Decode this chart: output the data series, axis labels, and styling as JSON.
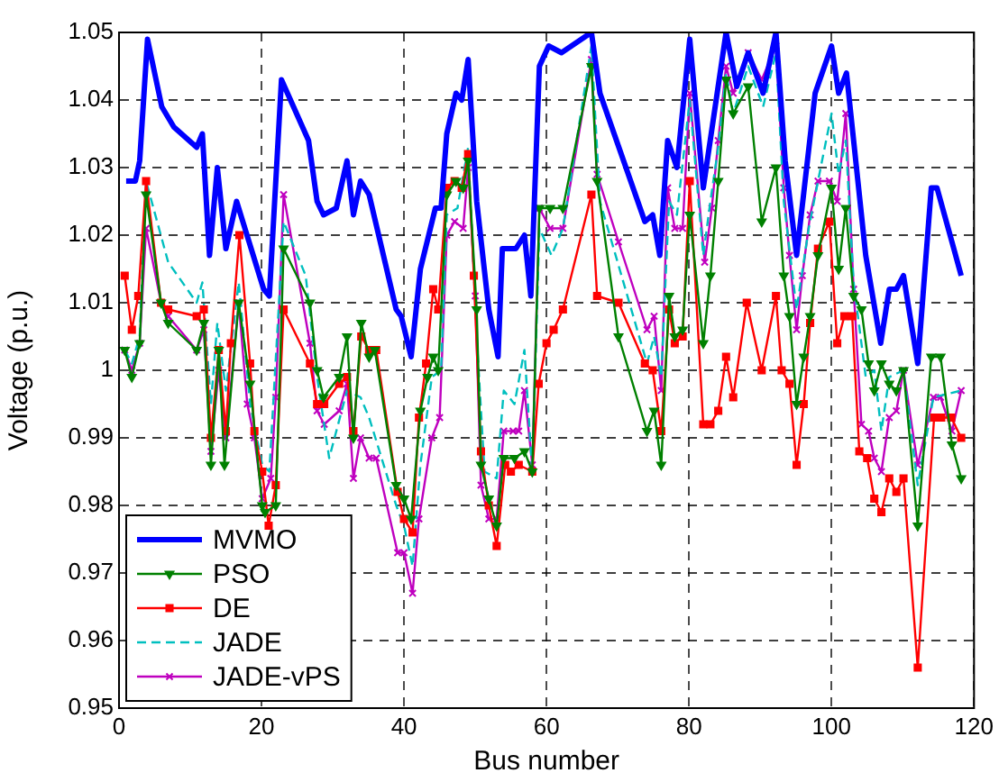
{
  "chart_data": {
    "type": "line",
    "xlabel": "Bus number",
    "ylabel": "Voltage (p.u.)",
    "xlim": [
      0,
      120
    ],
    "xticks": [
      0,
      20,
      40,
      60,
      80,
      100,
      120
    ],
    "ylim": [
      0.95,
      1.05
    ],
    "yticks": [
      0.95,
      0.96,
      0.97,
      0.98,
      0.99,
      1,
      1.01,
      1.02,
      1.03,
      1.04,
      1.05
    ],
    "grid": true,
    "legend": "bottom left",
    "series": [
      {
        "name": "MVMO",
        "color": "#0000ff",
        "marker": "none",
        "line_style": "solid",
        "x": [
          1,
          2.3,
          2.9,
          4,
          6,
          7.7,
          10.9,
          11.7,
          12.7,
          13.8,
          15,
          16.5,
          20.3,
          21.1,
          22.8,
          26.6,
          27.8,
          28.7,
          30.5,
          32,
          32.9,
          33.9,
          35.1,
          38.9,
          39.6,
          41,
          42.3,
          44.4,
          45.2,
          46,
          47.3,
          48.1,
          49,
          50.2,
          51.9,
          53.2,
          53.8,
          55.7,
          56.9,
          57.8,
          59,
          60.3,
          62.1,
          66.3,
          67.5,
          73.8,
          74.9,
          75.9,
          77,
          78.3,
          80.1,
          82,
          85.2,
          86.7,
          88.3,
          90.4,
          92.2,
          93.5,
          95.1,
          97.7,
          100,
          101,
          102.1,
          104.8,
          106.9,
          108.1,
          109.1,
          110.1,
          112.1,
          114,
          114.8,
          116.9,
          118.2
        ],
        "values": [
          1.028,
          1.028,
          1.031,
          1.049,
          1.039,
          1.036,
          1.033,
          1.035,
          1.017,
          1.03,
          1.018,
          1.025,
          1.012,
          1.011,
          1.043,
          1.034,
          1.025,
          1.023,
          1.024,
          1.031,
          1.023,
          1.028,
          1.026,
          1.009,
          1.008,
          1.002,
          1.015,
          1.024,
          1.024,
          1.035,
          1.041,
          1.04,
          1.046,
          1.025,
          1.009,
          1.002,
          1.018,
          1.018,
          1.02,
          1.011,
          1.045,
          1.048,
          1.047,
          1.05,
          1.041,
          1.022,
          1.023,
          1.017,
          1.034,
          1.03,
          1.049,
          1.027,
          1.05,
          1.042,
          1.047,
          1.041,
          1.05,
          1.031,
          1.017,
          1.041,
          1.048,
          1.041,
          1.044,
          1.017,
          1.004,
          1.012,
          1.012,
          1.014,
          1.001,
          1.027,
          1.027,
          1.019,
          1.014
        ]
      },
      {
        "name": "PSO",
        "color": "#008000",
        "marker": "triangle",
        "line_style": "solid",
        "x": [
          0.8,
          1.8,
          2.9,
          3.8,
          5.9,
          6.9,
          10.9,
          11.9,
          12.9,
          14,
          14.8,
          16.8,
          18.4,
          20.1,
          20.5,
          22,
          23.1,
          26.8,
          27.8,
          28.7,
          30.9,
          32,
          32.9,
          34,
          35.1,
          35.9,
          38.9,
          40,
          41,
          42.3,
          43.3,
          44.1,
          44.8,
          46,
          47.3,
          48.3,
          49,
          50.2,
          50.8,
          51.9,
          53,
          54,
          55.5,
          56.9,
          58,
          59,
          60.5,
          62.3,
          66.3,
          67.1,
          70.1,
          74.1,
          75.1,
          76.1,
          77.2,
          78,
          79.1,
          80.1,
          82,
          83,
          84.1,
          85.2,
          86.2,
          88.3,
          90.2,
          92.2,
          93.3,
          94.1,
          95.1,
          96.1,
          97,
          98.1,
          100,
          101,
          102,
          103.1,
          104.2,
          105.2,
          106,
          107,
          108.1,
          109.1,
          110.1,
          112.1,
          114,
          115.3,
          116.9,
          118.2
        ],
        "values": [
          1.003,
          0.999,
          1.004,
          1.026,
          1.01,
          1.007,
          1.003,
          1.007,
          0.986,
          1.003,
          0.986,
          1.01,
          0.998,
          0.98,
          0.979,
          0.98,
          1.018,
          1.01,
          1.0,
          0.996,
          0.999,
          1.005,
          0.99,
          1.007,
          1.002,
          1.003,
          0.983,
          0.981,
          0.978,
          0.994,
          0.999,
          1.002,
          1.0,
          1.026,
          1.028,
          1.027,
          1.031,
          1.009,
          0.986,
          0.981,
          0.977,
          0.987,
          0.987,
          0.988,
          0.985,
          1.024,
          1.024,
          1.024,
          1.045,
          1.028,
          1.005,
          0.991,
          0.994,
          0.986,
          1.011,
          1.005,
          1.006,
          1.023,
          1.004,
          1.014,
          1.028,
          1.043,
          1.038,
          1.042,
          1.022,
          1.03,
          1.014,
          1.008,
          0.995,
          1.002,
          1.008,
          1.017,
          1.027,
          1.015,
          1.024,
          1.011,
          1.009,
          1.001,
          0.997,
          1.001,
          0.998,
          0.997,
          1.0,
          0.977,
          1.002,
          1.002,
          0.989,
          0.984
        ]
      },
      {
        "name": "DE",
        "color": "#ff0000",
        "marker": "square",
        "line_style": "solid",
        "x": [
          0.8,
          1.8,
          2.7,
          3.8,
          5.9,
          6.9,
          10.9,
          11.9,
          12.9,
          14,
          15,
          15.7,
          16.9,
          18.4,
          19,
          20.1,
          21,
          22,
          23.1,
          26.8,
          27.8,
          28.8,
          30.9,
          32,
          32.9,
          34,
          35.1,
          36.1,
          39.1,
          40,
          41.2,
          42.1,
          43.1,
          44.1,
          44.8,
          46,
          47.1,
          48.1,
          49,
          49.8,
          50.8,
          51.9,
          53,
          54.2,
          55,
          56.1,
          58,
          58.9,
          60,
          61,
          62.3,
          66.3,
          67.1,
          70.1,
          73.8,
          74.9,
          76.1,
          77.2,
          78,
          79.1,
          80.1,
          82,
          83,
          84.1,
          85.2,
          86.2,
          88.1,
          90.2,
          92.2,
          93,
          94.1,
          95.1,
          96.1,
          97,
          98.1,
          99.7,
          100.8,
          101.8,
          102.9,
          103.9,
          105,
          106,
          107,
          108.1,
          109.1,
          110.1,
          112.1,
          114.4,
          115.4,
          116.8,
          118.2
        ],
        "values": [
          1.014,
          1.006,
          1.011,
          1.028,
          1.01,
          1.009,
          1.008,
          1.009,
          0.99,
          1.003,
          0.991,
          1.004,
          1.02,
          1.001,
          0.991,
          0.985,
          0.977,
          0.983,
          1.009,
          1.001,
          0.995,
          0.995,
          0.998,
          0.999,
          0.991,
          1.005,
          1.003,
          1.003,
          0.982,
          0.978,
          0.976,
          0.993,
          1.001,
          1.012,
          1.009,
          1.027,
          1.028,
          1.027,
          1.032,
          1.014,
          0.988,
          0.98,
          0.974,
          0.986,
          0.985,
          0.986,
          0.985,
          0.998,
          1.004,
          1.006,
          1.009,
          1.026,
          1.011,
          1.01,
          1.001,
          1.0,
          0.991,
          1.009,
          1.004,
          1.005,
          1.028,
          0.992,
          0.992,
          0.994,
          1.002,
          0.996,
          1.01,
          1.0,
          1.011,
          1.0,
          0.998,
          0.986,
          0.995,
          1.007,
          1.018,
          1.022,
          1.004,
          1.008,
          1.008,
          0.988,
          0.987,
          0.981,
          0.979,
          0.984,
          0.982,
          0.984,
          0.956,
          0.993,
          0.993,
          0.993,
          0.99
        ]
      },
      {
        "name": "JADE",
        "color": "#00bfbf",
        "marker": "none",
        "line_style": "dashed",
        "x": [
          0.8,
          1.8,
          2.9,
          3.8,
          6.9,
          10.9,
          11.7,
          12.9,
          13.8,
          15,
          16.8,
          18.4,
          20.1,
          21.1,
          23.1,
          26.2,
          27.8,
          29.5,
          32,
          33.9,
          35.1,
          38.9,
          40,
          41.2,
          42.3,
          43.9,
          45.2,
          46,
          47.5,
          49,
          50.2,
          51.3,
          53,
          54,
          55.5,
          56.9,
          58,
          59,
          60.7,
          62.3,
          66.3,
          67.5,
          74.1,
          75.1,
          76.1,
          77.2,
          78.3,
          80.1,
          82,
          83,
          84.1,
          85.2,
          86.2,
          88.3,
          90.4,
          92.2,
          93.3,
          95.1,
          96.8,
          98.1,
          100,
          101,
          102,
          103.1,
          104.8,
          106,
          107,
          108.1,
          110.1,
          112.1,
          114.3,
          118.2
        ],
        "values": [
          1.003,
          1.001,
          1.005,
          1.028,
          1.016,
          1.01,
          1.013,
          0.995,
          1.007,
          0.997,
          1.013,
          0.995,
          0.986,
          0.985,
          1.022,
          1.014,
          0.999,
          0.987,
          0.997,
          0.996,
          0.993,
          0.98,
          0.977,
          0.971,
          0.986,
          0.999,
          1.0,
          1.023,
          1.024,
          1.033,
          1.005,
          0.985,
          0.984,
          0.997,
          0.995,
          1.003,
          0.985,
          1.021,
          1.017,
          1.021,
          1.048,
          1.025,
          1.001,
          1.005,
          0.999,
          1.025,
          1.023,
          1.04,
          1.017,
          1.025,
          1.033,
          1.044,
          1.038,
          1.045,
          1.039,
          1.047,
          1.025,
          1.009,
          1.021,
          1.028,
          1.038,
          1.029,
          1.034,
          1.013,
          0.999,
          1.0,
          0.991,
          0.999,
          1.0,
          0.983,
          0.996,
          0.997
        ]
      },
      {
        "name": "JADE-vPS",
        "color": "#bf00bf",
        "marker": "cross",
        "line_style": "solid",
        "x": [
          0.8,
          1.8,
          2.9,
          3.8,
          5.9,
          6.9,
          10.9,
          11.9,
          12.9,
          14,
          15,
          16.8,
          18,
          19,
          20.1,
          21.3,
          22,
          23.1,
          26.8,
          27.8,
          28.8,
          30.9,
          32,
          32.9,
          33.9,
          35.1,
          36.1,
          39.1,
          40,
          41.2,
          42.1,
          43.9,
          45,
          46,
          47.1,
          48.3,
          49,
          50,
          50.8,
          51.9,
          53,
          54,
          55.3,
          56.1,
          56.9,
          58,
          59,
          60.5,
          62.3,
          66.3,
          67.1,
          70.1,
          74.1,
          75.1,
          76.1,
          77,
          78,
          79.1,
          80.1,
          82.2,
          83.2,
          84.1,
          85.2,
          86.2,
          88.3,
          90.2,
          92.2,
          93.3,
          94.1,
          95.1,
          95.9,
          97,
          98.1,
          99.7,
          100.8,
          102,
          103.1,
          104.2,
          105.2,
          106,
          107,
          108.1,
          109.1,
          110.1,
          112.1,
          114.3,
          115.3,
          116.9,
          118.2
        ],
        "values": [
          1.003,
          1.0,
          1.004,
          1.021,
          1.01,
          1.008,
          1.003,
          1.006,
          0.988,
          1.0,
          0.99,
          1.01,
          0.995,
          0.99,
          0.981,
          0.984,
          0.996,
          1.026,
          1.004,
          0.994,
          0.992,
          0.994,
          0.998,
          0.984,
          0.99,
          0.987,
          0.987,
          0.973,
          0.973,
          0.967,
          0.978,
          0.99,
          0.993,
          1.02,
          1.022,
          1.021,
          1.03,
          1.011,
          0.983,
          0.978,
          0.978,
          0.991,
          0.991,
          0.991,
          0.997,
          0.986,
          1.024,
          1.021,
          1.021,
          1.046,
          1.029,
          1.019,
          1.006,
          1.008,
          0.997,
          1.027,
          1.021,
          1.021,
          1.041,
          1.016,
          1.024,
          1.034,
          1.045,
          1.041,
          1.047,
          1.043,
          1.048,
          1.027,
          1.017,
          1.006,
          1.014,
          1.023,
          1.028,
          1.028,
          1.025,
          1.038,
          1.012,
          0.992,
          0.991,
          0.987,
          0.985,
          0.993,
          0.994,
          1.0,
          0.986,
          0.996,
          0.996,
          0.991,
          0.997
        ]
      }
    ]
  }
}
